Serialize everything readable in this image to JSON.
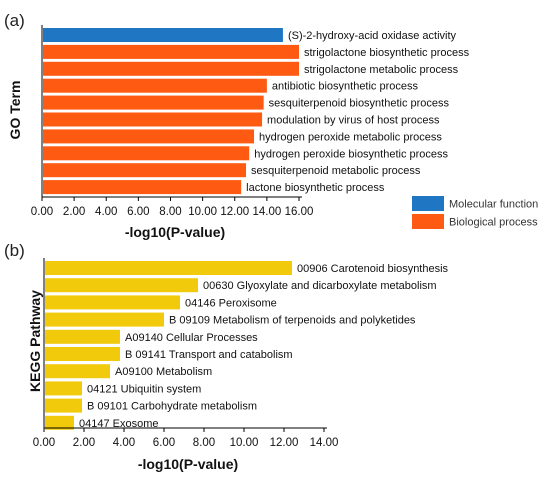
{
  "chart_data": [
    {
      "type": "bar",
      "orientation": "horizontal",
      "panel_tag": "(a)",
      "ylabel": "GO Term",
      "xlabel": "-log10(P-value)",
      "xlim": [
        0,
        16
      ],
      "xticks": [
        "0.00",
        "2.00",
        "4.00",
        "6.00",
        "8.00",
        "10.00",
        "12.00",
        "14.00",
        "16.00"
      ],
      "grid": false,
      "legend_placement": "right",
      "legend": [
        {
          "name": "Molecular function",
          "color": "#1f77c4"
        },
        {
          "name": "Biological process",
          "color": "#ff5a12"
        }
      ],
      "bars": [
        {
          "label": "(S)-2-hydroxy-acid oxidase activity",
          "value": 15.0,
          "group": 0
        },
        {
          "label": "strigolactone biosynthetic process",
          "value": 16.0,
          "group": 1
        },
        {
          "label": "strigolactone metabolic process",
          "value": 16.0,
          "group": 1
        },
        {
          "label": "antibiotic biosynthetic process",
          "value": 14.0,
          "group": 1
        },
        {
          "label": "sesquiterpenoid biosynthetic process",
          "value": 13.8,
          "group": 1
        },
        {
          "label": "modulation by virus of host process",
          "value": 13.7,
          "group": 1
        },
        {
          "label": "hydrogen peroxide metabolic process",
          "value": 13.2,
          "group": 1
        },
        {
          "label": "hydrogen peroxide biosynthetic process",
          "value": 12.9,
          "group": 1
        },
        {
          "label": "sesquiterpenoid metabolic process",
          "value": 12.7,
          "group": 1
        },
        {
          "label": "lactone biosynthetic process",
          "value": 12.4,
          "group": 1
        }
      ]
    },
    {
      "type": "bar",
      "orientation": "horizontal",
      "panel_tag": "(b)",
      "ylabel": "KEGG Pathway",
      "xlabel": "-log10(P-value)",
      "xlim": [
        0,
        14
      ],
      "xticks": [
        "0.00",
        "2.00",
        "4.00",
        "6.00",
        "8.00",
        "10.00",
        "12.00",
        "14.00"
      ],
      "grid": false,
      "color": "#f2ca0c",
      "bars": [
        {
          "label": "00906 Carotenoid biosynthesis",
          "value": 12.4
        },
        {
          "label": "00630 Glyoxylate and dicarboxylate metabolism",
          "value": 7.7
        },
        {
          "label": "04146 Peroxisome",
          "value": 6.8
        },
        {
          "label": "B  09109 Metabolism of terpenoids and polyketides",
          "value": 6.0
        },
        {
          "label": "A09140 Cellular Processes",
          "value": 3.8
        },
        {
          "label": "B  09141 Transport and catabolism",
          "value": 3.8
        },
        {
          "label": "A09100 Metabolism",
          "value": 3.3
        },
        {
          "label": "04121 Ubiquitin system",
          "value": 1.9
        },
        {
          "label": "B  09101 Carbohydrate metabolism",
          "value": 1.9
        },
        {
          "label": "04147 Exosome",
          "value": 1.5
        }
      ]
    }
  ]
}
